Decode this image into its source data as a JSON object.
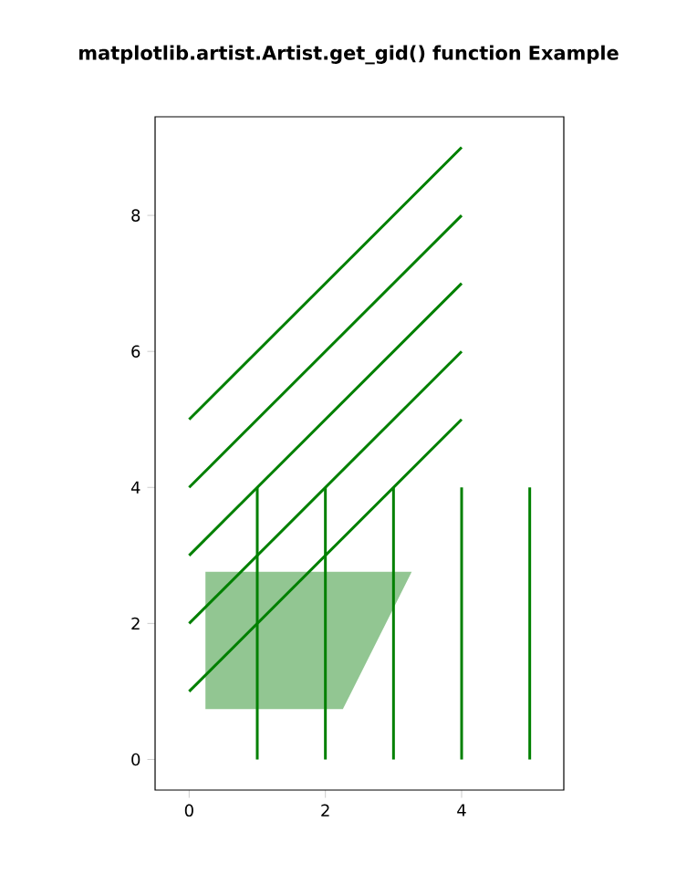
{
  "chart_data": {
    "type": "line",
    "title": "matplotlib.artist.Artist.get_gid() function Example",
    "xlim": [
      -0.5,
      5.5
    ],
    "ylim": [
      -0.45,
      9.45
    ],
    "xticks": [
      0,
      2,
      4
    ],
    "yticks": [
      0,
      2,
      4,
      6,
      8
    ],
    "series": [
      {
        "color": "#008000",
        "x": [
          0,
          4
        ],
        "values": [
          1,
          5
        ]
      },
      {
        "color": "#008000",
        "x": [
          0,
          4
        ],
        "values": [
          2,
          6
        ]
      },
      {
        "color": "#008000",
        "x": [
          0,
          4
        ],
        "values": [
          3,
          7
        ]
      },
      {
        "color": "#008000",
        "x": [
          0,
          4
        ],
        "values": [
          4,
          8
        ]
      },
      {
        "color": "#008000",
        "x": [
          0,
          4
        ],
        "values": [
          5,
          9
        ]
      },
      {
        "color": "#008000",
        "x": [
          1,
          1
        ],
        "values": [
          0,
          4
        ]
      },
      {
        "color": "#008000",
        "x": [
          2,
          2
        ],
        "values": [
          0,
          4
        ]
      },
      {
        "color": "#008000",
        "x": [
          3,
          3
        ],
        "values": [
          0,
          4
        ]
      },
      {
        "color": "#008000",
        "x": [
          4,
          4
        ],
        "values": [
          0,
          4
        ]
      },
      {
        "color": "#008000",
        "x": [
          5,
          5
        ],
        "values": [
          0,
          4
        ]
      },
      {
        "type": "area",
        "color": "#92c692",
        "x": [
          0.25,
          2.25,
          3.25,
          0.25
        ],
        "values": [
          0.75,
          0.75,
          2.75,
          2.75
        ]
      }
    ]
  }
}
